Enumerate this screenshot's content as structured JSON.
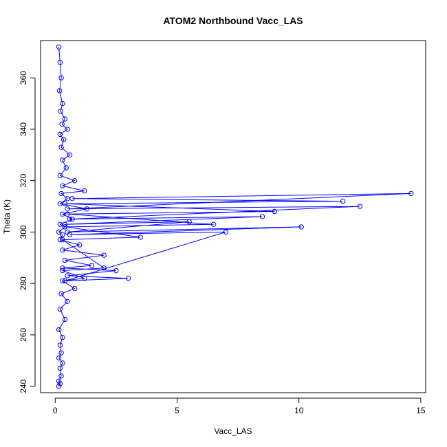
{
  "chart_data": {
    "type": "line",
    "title": "ATOM2 Northbound Vacc_LAS",
    "xlabel": "Vacc_LAS",
    "ylabel": "Theta (K)",
    "xlim": [
      -0.6,
      15.2
    ],
    "ylim": [
      237.5,
      374.5
    ],
    "xticks": [
      0,
      5,
      10,
      15
    ],
    "yticks": [
      240,
      260,
      280,
      300,
      320,
      340,
      360
    ],
    "x_tick_labels": [
      "0",
      "5",
      "10",
      "15"
    ],
    "y_tick_labels": [
      "240",
      "260",
      "280",
      "300",
      "320",
      "340",
      "360"
    ],
    "grid": false,
    "series": [
      {
        "color": "#0000ff",
        "marker": "open-circle",
        "x": [
          0.15,
          0.2,
          0.25,
          0.18,
          0.3,
          0.22,
          0.4,
          0.28,
          0.5,
          0.2,
          0.35,
          0.25,
          0.6,
          0.3,
          0.45,
          0.2,
          0.8,
          0.3,
          1.2,
          0.25,
          0.5,
          0.2,
          1.3,
          0.3,
          0.7,
          0.2,
          0.4,
          0.15,
          0.3,
          0.2,
          1.0,
          0.3,
          2.0,
          0.4,
          1.5,
          0.3,
          2.5,
          0.5,
          3.0,
          0.4,
          7.0,
          0.6,
          10.1,
          0.5,
          5.5,
          0.4,
          8.5,
          0.6,
          12.5,
          0.5,
          14.6,
          0.7,
          11.8,
          0.4,
          9.0,
          0.5,
          6.5,
          0.4,
          3.5,
          0.3,
          2.0,
          0.3,
          1.2,
          0.3,
          0.8,
          0.25,
          0.5,
          0.2,
          0.4,
          0.15,
          0.3,
          0.2,
          0.25,
          0.15,
          0.3,
          0.2,
          0.25,
          0.15,
          0.2,
          0.15
        ],
        "y": [
          372,
          366,
          360,
          355,
          350,
          347,
          344,
          342,
          340,
          338,
          336,
          333,
          330,
          328,
          325,
          322,
          320,
          318,
          316,
          315,
          313,
          311,
          309,
          307,
          305,
          303,
          302,
          300,
          299,
          297,
          295,
          293,
          291,
          289,
          287,
          286,
          285,
          283,
          282,
          281,
          300,
          299,
          302,
          300,
          304,
          303,
          306,
          305,
          310,
          309,
          315,
          313,
          312,
          311,
          308,
          307,
          303,
          302,
          298,
          297,
          286,
          285,
          282,
          281,
          278,
          276,
          273,
          270,
          266,
          262,
          259,
          256,
          253,
          251,
          249,
          247,
          244,
          242,
          241,
          240
        ]
      }
    ]
  }
}
